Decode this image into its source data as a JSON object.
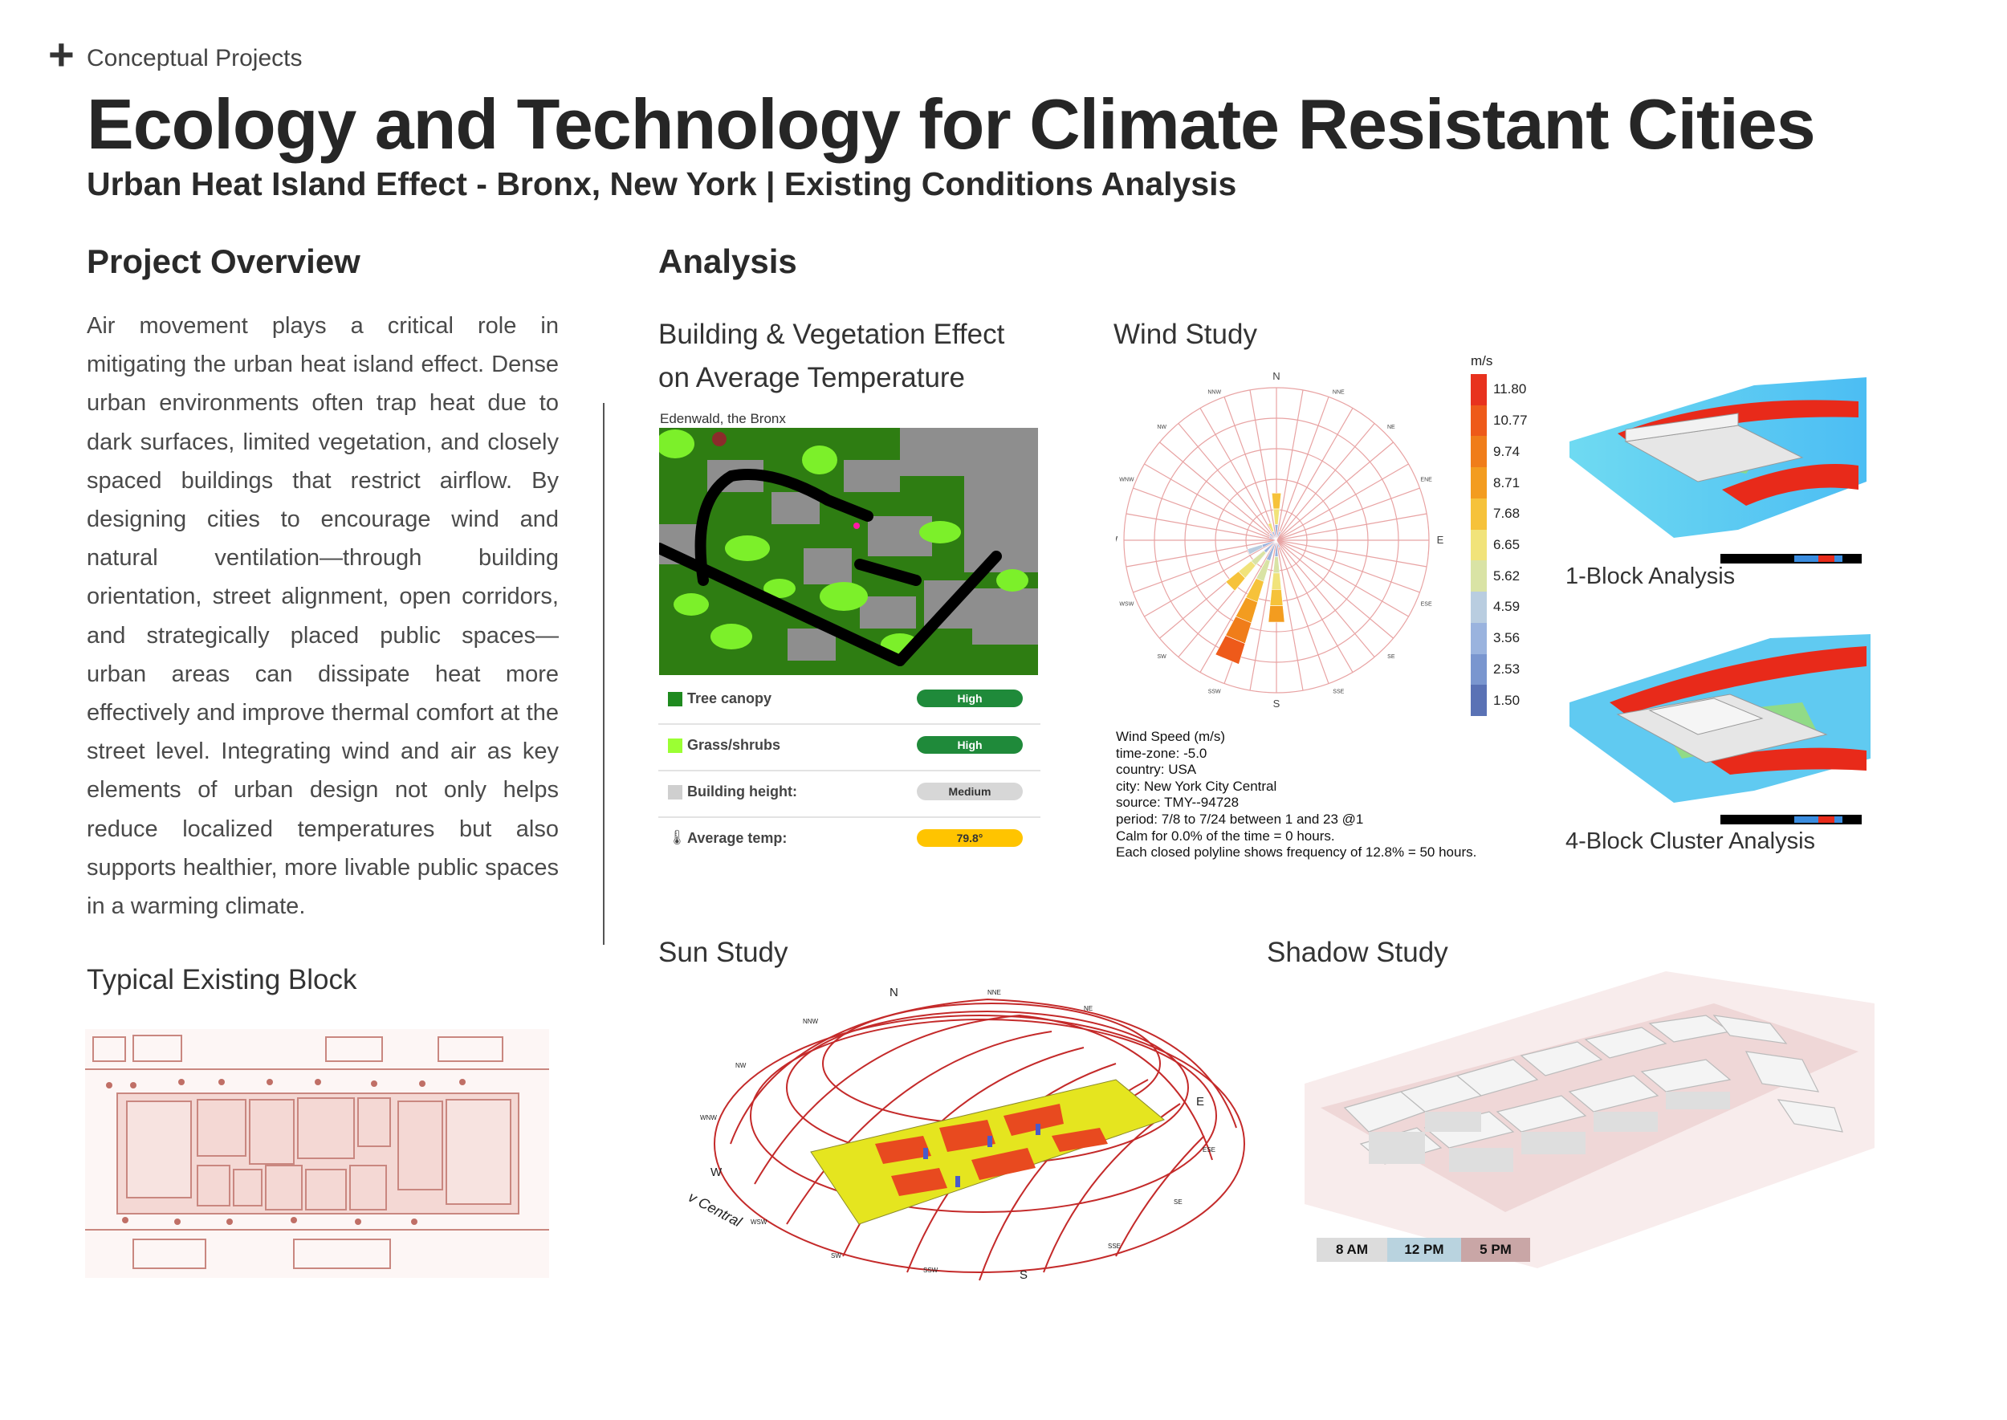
{
  "header": {
    "kicker": "Conceptual Projects",
    "title": "Ecology and Technology for Climate Resistant Cities",
    "subtitle": "Urban Heat Island Effect - Bronx, New York | Existing Conditions Analysis"
  },
  "overview": {
    "heading": "Project Overview",
    "body": "Air movement plays a critical role in mitigating the urban heat island effect. Dense urban environments often trap heat due to dark surfaces, limited vegetation, and closely spaced buildings that restrict airflow. By designing cities to encourage wind and natural ventilation—through building orientation, street alignment, open corridors, and strategically placed public spaces—urban areas can dissipate heat more effectively and improve thermal comfort at the street level. Integrating wind and air as key elements of urban design not only helps reduce localized temperatures but also supports healthier, more livable public spaces in a warming climate."
  },
  "typical_block": {
    "heading": "Typical Existing Block"
  },
  "analysis": {
    "heading": "Analysis",
    "vegetation": {
      "title_line1": "Building & Vegetation Effect",
      "title_line2": "on Average Temperature",
      "map_caption": "Edenwald, the Bronx",
      "legend": [
        {
          "label": "Tree canopy",
          "value": "High",
          "color": "#1f8a1f",
          "pill": "#1f8a3a",
          "pill_text": "#ffffff"
        },
        {
          "label": "Grass/shrubs",
          "value": "High",
          "color": "#9bff33",
          "pill": "#1f8a3a",
          "pill_text": "#ffffff"
        },
        {
          "label": "Building height:",
          "value": "Medium",
          "color": "#cfcfcf",
          "pill": "#d7d7d7",
          "pill_text": "#333333"
        },
        {
          "label": "Average temp:",
          "value": "79.8°",
          "color": "#ffffff",
          "pill": "#ffc400",
          "pill_text": "#333333"
        }
      ]
    },
    "wind": {
      "title": "Wind Study",
      "unit": "m/s",
      "directions": [
        "N",
        "NNE",
        "NE",
        "ENE",
        "E",
        "ESE",
        "SE",
        "SSE",
        "S",
        "SSW",
        "SW",
        "WSW",
        "W",
        "WNW",
        "NW",
        "NNW"
      ],
      "scale": [
        "11.80",
        "10.77",
        "9.74",
        "8.71",
        "7.68",
        "6.65",
        "5.62",
        "4.59",
        "3.56",
        "2.53",
        "1.50"
      ],
      "scale_colors": [
        "#e8321e",
        "#ee5a1a",
        "#f07d1a",
        "#f39c1f",
        "#f6c23a",
        "#f1e37a",
        "#d9e3a5",
        "#b9cde0",
        "#9ab3de",
        "#7a96cf",
        "#5a72b5"
      ],
      "meta": [
        "Wind Speed (m/s)",
        "time-zone: -5.0",
        "country: USA",
        "city: New York City Central",
        "source: TMY--94728",
        "period: 7/8 to 7/24 between 1 and 23 @1",
        "Calm for 0.0% of the time = 0 hours.",
        "Each closed polyline shows frequency of 12.8% = 50 hours."
      ],
      "roses": [
        {
          "dir_index": 0,
          "length": 0.31,
          "colors": [
            "#9ab3de",
            "#f1e37a",
            "#f6c23a"
          ]
        },
        {
          "dir_index": 15,
          "length": 0.12,
          "colors": [
            "#9ab3de",
            "#f1e37a"
          ]
        },
        {
          "dir_index": 14,
          "length": 0.06,
          "colors": [
            "#9ab3de"
          ]
        },
        {
          "dir_index": 13,
          "length": 0.05,
          "colors": [
            "#9ab3de"
          ]
        },
        {
          "dir_index": 11,
          "length": 0.2,
          "colors": [
            "#9ab3de",
            "#b9cde0"
          ]
        },
        {
          "dir_index": 10,
          "length": 0.43,
          "colors": [
            "#9ab3de",
            "#d9e3a5",
            "#f1e37a",
            "#f6c23a"
          ]
        },
        {
          "dir_index": 9,
          "length": 0.85,
          "colors": [
            "#9ab3de",
            "#d9e3a5",
            "#f6c23a",
            "#f39c1f",
            "#f07d1a",
            "#ee5a1a"
          ]
        },
        {
          "dir_index": 8,
          "length": 0.54,
          "colors": [
            "#9ab3de",
            "#d9e3a5",
            "#f1e37a",
            "#f6c23a",
            "#f39c1f"
          ]
        },
        {
          "dir_index": 7,
          "length": 0.05,
          "colors": [
            "#9ab3de"
          ]
        },
        {
          "dir_index": 1,
          "length": 0.06,
          "colors": [
            "#9ab3de"
          ]
        }
      ]
    },
    "one_block": {
      "label": "1-Block Analysis"
    },
    "four_block": {
      "label": "4-Block Cluster Analysis"
    },
    "sun": {
      "title": "Sun Study",
      "directions": [
        "N",
        "NNE",
        "NE",
        "E",
        "ESE",
        "SE",
        "SSE",
        "S",
        "SSW",
        "SW",
        "WSW",
        "W",
        "WNW",
        "NW",
        "NNW"
      ],
      "location_fragment": "v Central"
    },
    "shadow": {
      "title": "Shadow Study",
      "times": [
        {
          "label": "8 AM",
          "color": "#dcdcdc"
        },
        {
          "label": "12 PM",
          "color": "#b9d3df"
        },
        {
          "label": "5 PM",
          "color": "#c9a6a6"
        }
      ]
    }
  }
}
